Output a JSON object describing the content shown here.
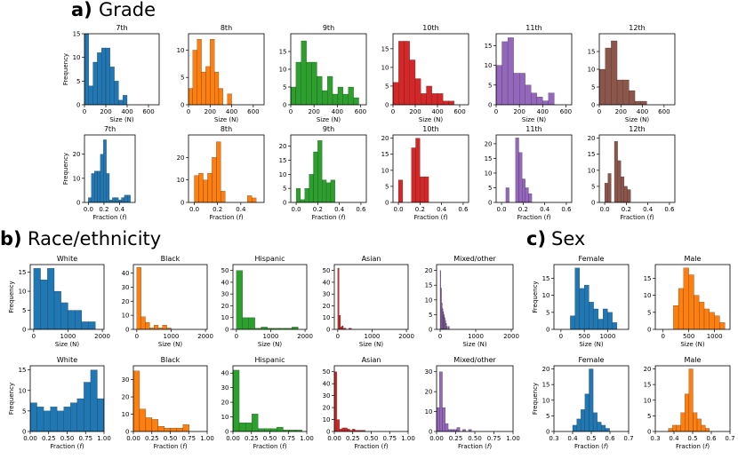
{
  "sections": [
    {
      "letter": "a)",
      "title": "Grade"
    },
    {
      "letter": "b)",
      "title": "Race/ethnicity"
    },
    {
      "letter": "c)",
      "title": "Sex"
    }
  ],
  "labels": {
    "frequency": "Frequency",
    "size": "Size (N)",
    "fraction_prefix": "Fraction (",
    "fraction_var": "f",
    "fraction_suffix": ")"
  },
  "colors": {
    "blue": "#1f77b4",
    "orange": "#ff7f0e",
    "green": "#2ca02c",
    "red": "#d62728",
    "purple": "#9467bd",
    "brown": "#8c564b"
  },
  "chart_data": [
    {
      "type": "bar",
      "title": "7th",
      "color": "blue",
      "xlabel": "size",
      "ylabel": true,
      "xlim": [
        0,
        700
      ],
      "xticks": [
        0,
        200,
        400,
        600
      ],
      "ylim": [
        0,
        15
      ],
      "yticks": [
        0,
        5,
        10,
        15
      ],
      "bin_start": 0,
      "bin_width": 40,
      "values": [
        15,
        4,
        9,
        11,
        12,
        12,
        8,
        5,
        1,
        2
      ]
    },
    {
      "type": "bar",
      "title": "8th",
      "color": "orange",
      "xlabel": "size",
      "ylabel": false,
      "xlim": [
        0,
        700
      ],
      "xticks": [
        0,
        200,
        400,
        600
      ],
      "ylim": [
        0,
        13
      ],
      "yticks": [
        0,
        5,
        10
      ],
      "bin_start": 0,
      "bin_width": 40,
      "values": [
        3,
        10,
        12,
        6,
        7,
        12,
        6,
        3,
        0,
        2
      ]
    },
    {
      "type": "bar",
      "title": "9th",
      "color": "green",
      "xlabel": "size",
      "ylabel": false,
      "xlim": [
        0,
        650
      ],
      "xticks": [
        0,
        200,
        400,
        600
      ],
      "ylim": [
        0,
        20
      ],
      "yticks": [
        0,
        5,
        10,
        15
      ],
      "bin_start": 0,
      "bin_width": 45,
      "values": [
        5,
        12,
        18,
        12,
        12,
        8,
        4,
        8,
        3,
        5,
        3,
        5,
        2
      ]
    },
    {
      "type": "bar",
      "title": "10th",
      "color": "red",
      "xlabel": "size",
      "ylabel": false,
      "xlim": [
        0,
        680
      ],
      "xticks": [
        0,
        200,
        400,
        600
      ],
      "ylim": [
        0,
        19
      ],
      "yticks": [
        0,
        5,
        10,
        15
      ],
      "bin_start": 0,
      "bin_width": 50,
      "values": [
        6,
        17,
        17,
        12,
        7,
        3,
        5,
        3,
        3,
        1,
        1
      ]
    },
    {
      "type": "bar",
      "title": "11th",
      "color": "purple",
      "xlabel": "size",
      "ylabel": false,
      "xlim": [
        0,
        650
      ],
      "xticks": [
        0,
        200,
        400,
        600
      ],
      "ylim": [
        0,
        18
      ],
      "yticks": [
        0,
        5,
        10,
        15
      ],
      "bin_start": 0,
      "bin_width": 50,
      "values": [
        10,
        16,
        17,
        8,
        8,
        5,
        3,
        2,
        1,
        3
      ]
    },
    {
      "type": "bar",
      "title": "12th",
      "color": "brown",
      "xlabel": "size",
      "ylabel": false,
      "xlim": [
        0,
        700
      ],
      "xticks": [
        0,
        200,
        400,
        600
      ],
      "ylim": [
        0,
        20
      ],
      "yticks": [
        0,
        5,
        10,
        15
      ],
      "bin_start": 0,
      "bin_width": 55,
      "values": [
        10,
        16,
        18,
        7,
        7,
        4,
        1,
        1
      ]
    },
    {
      "type": "bar",
      "title": "7th",
      "color": "blue",
      "xlabel": "fraction",
      "ylabel": true,
      "xlim": [
        -0.05,
        0.6
      ],
      "xticks": [
        0.0,
        0.2,
        0.4
      ],
      "ylim": [
        0,
        28
      ],
      "yticks": [
        0,
        10,
        20
      ],
      "bin_start": 0.0,
      "bin_width": 0.0385,
      "values": [
        2,
        12,
        13,
        13,
        20,
        26,
        12,
        1,
        2,
        2,
        1,
        2,
        3,
        3
      ]
    },
    {
      "type": "bar",
      "title": "8th",
      "color": "orange",
      "xlabel": "fraction",
      "ylabel": false,
      "xlim": [
        -0.05,
        0.6
      ],
      "xticks": [
        0.0,
        0.2,
        0.4
      ],
      "ylim": [
        0,
        30
      ],
      "yticks": [
        0,
        10,
        20
      ],
      "bin_start": 0.0,
      "bin_width": 0.038,
      "values": [
        12,
        13,
        10,
        13,
        20,
        27,
        5,
        0,
        0,
        0,
        0,
        0,
        3,
        2
      ]
    },
    {
      "type": "bar",
      "title": "9th",
      "color": "green",
      "xlabel": "fraction",
      "ylabel": false,
      "xlim": [
        -0.05,
        0.65
      ],
      "xticks": [
        0.0,
        0.2,
        0.4,
        0.6
      ],
      "ylim": [
        0,
        24
      ],
      "yticks": [
        0,
        5,
        10,
        15,
        20
      ],
      "bin_start": 0.0,
      "bin_width": 0.04,
      "values": [
        5,
        1,
        5,
        10,
        18,
        22,
        8,
        7,
        8
      ]
    },
    {
      "type": "bar",
      "title": "10th",
      "color": "red",
      "xlabel": "fraction",
      "ylabel": false,
      "xlim": [
        -0.05,
        0.65
      ],
      "xticks": [
        0.0,
        0.2,
        0.4,
        0.6
      ],
      "ylim": [
        0,
        21
      ],
      "yticks": [
        0,
        5,
        10,
        15,
        20
      ],
      "bin_start": 0.0,
      "bin_width": 0.04,
      "values": [
        7,
        0,
        0,
        17,
        20,
        8,
        8
      ]
    },
    {
      "type": "bar",
      "title": "11th",
      "color": "purple",
      "xlabel": "fraction",
      "ylabel": false,
      "xlim": [
        -0.05,
        0.65
      ],
      "xticks": [
        0.0,
        0.2,
        0.4,
        0.6
      ],
      "ylim": [
        0,
        23
      ],
      "yticks": [
        0,
        5,
        10,
        15,
        20
      ],
      "bin_start": 0.04,
      "bin_width": 0.03,
      "values": [
        5,
        0,
        0,
        22,
        17,
        8,
        5,
        3
      ]
    },
    {
      "type": "bar",
      "title": "12th",
      "color": "brown",
      "xlabel": "fraction",
      "ylabel": false,
      "xlim": [
        -0.05,
        0.65
      ],
      "xticks": [
        0.0,
        0.2,
        0.4,
        0.6
      ],
      "ylim": [
        0,
        21
      ],
      "yticks": [
        0,
        5,
        10,
        15,
        20
      ],
      "bin_start": 0.0,
      "bin_width": 0.03,
      "values": [
        6,
        9,
        0,
        19,
        13,
        8,
        5,
        4
      ]
    },
    {
      "type": "bar",
      "title": "White",
      "color": "blue",
      "xlabel": "size",
      "ylabel": true,
      "xlim": [
        -100,
        2050
      ],
      "xticks": [
        0,
        1000,
        2000
      ],
      "ylim": [
        0,
        17
      ],
      "yticks": [
        0,
        5,
        10,
        15
      ],
      "bin_start": 0,
      "bin_width": 200,
      "values": [
        16,
        13,
        16,
        10,
        7,
        5,
        5,
        2,
        2
      ]
    },
    {
      "type": "bar",
      "title": "Black",
      "color": "orange",
      "xlabel": "size",
      "ylabel": false,
      "xlim": [
        -100,
        2050
      ],
      "xticks": [
        0,
        1000,
        2000
      ],
      "ylim": [
        0,
        46
      ],
      "yticks": [
        0,
        10,
        20,
        30,
        40
      ],
      "bin_start": 0,
      "bin_width": 125,
      "values": [
        44,
        9,
        5,
        1,
        3,
        1,
        3,
        1
      ]
    },
    {
      "type": "bar",
      "title": "Hispanic",
      "color": "green",
      "xlabel": "size",
      "ylabel": false,
      "xlim": [
        -100,
        2050
      ],
      "xticks": [
        0,
        1000,
        2000
      ],
      "ylim": [
        0,
        55
      ],
      "yticks": [
        0,
        10,
        20,
        30,
        40,
        50
      ],
      "bin_start": 0,
      "bin_width": 180,
      "values": [
        50,
        10,
        10,
        1,
        2,
        1,
        1,
        1,
        1,
        2
      ]
    },
    {
      "type": "bar",
      "title": "Asian",
      "color": "red",
      "xlabel": "size",
      "ylabel": false,
      "xlim": [
        -100,
        2050
      ],
      "xticks": [
        0,
        1000,
        2000
      ],
      "ylim": [
        0,
        55
      ],
      "yticks": [
        0,
        10,
        20,
        30,
        40,
        50
      ],
      "bin_start": 0,
      "bin_width": 40,
      "values": [
        52,
        12,
        2,
        3,
        1,
        1,
        0,
        0,
        1,
        1
      ]
    },
    {
      "type": "bar",
      "title": "Mixed/other",
      "color": "purple",
      "xlabel": "size",
      "ylabel": false,
      "xlim": [
        -100,
        2050
      ],
      "xticks": [
        0,
        1000,
        2000
      ],
      "ylim": [
        0,
        22
      ],
      "yticks": [
        0,
        5,
        10,
        15,
        20
      ],
      "bin_start": 0,
      "bin_width": 20,
      "values": [
        20,
        14,
        9,
        7,
        6,
        5,
        4,
        3,
        2,
        1,
        0,
        1,
        1
      ]
    },
    {
      "type": "bar",
      "title": "Female",
      "color": "blue",
      "xlabel": "size",
      "ylabel": true,
      "xlim": [
        -150,
        1450
      ],
      "xticks": [
        0,
        500,
        1000
      ],
      "ylim": [
        0,
        19
      ],
      "yticks": [
        0,
        5,
        10,
        15
      ],
      "bin_start": 200,
      "bin_width": 100,
      "values": [
        4,
        18,
        12,
        13,
        8,
        6,
        3,
        6,
        5,
        2
      ]
    },
    {
      "type": "bar",
      "title": "Male",
      "color": "orange",
      "xlabel": "size",
      "ylabel": false,
      "xlim": [
        -150,
        1300
      ],
      "xticks": [
        0,
        500,
        1000
      ],
      "ylim": [
        0,
        19
      ],
      "yticks": [
        0,
        5,
        10,
        15
      ],
      "bin_start": 200,
      "bin_width": 100,
      "values": [
        7,
        12,
        18,
        16,
        10,
        8,
        6,
        5,
        4,
        2
      ]
    },
    {
      "type": "bar",
      "title": "White",
      "color": "blue",
      "xlabel": "fraction",
      "ylabel": true,
      "xlim": [
        0,
        1
      ],
      "xticks": [
        0.0,
        0.25,
        0.5,
        0.75,
        1.0
      ],
      "ylim": [
        0,
        16
      ],
      "yticks": [
        0,
        5,
        10,
        15
      ],
      "bin_start": 0.0,
      "bin_width": 0.0909,
      "values": [
        7,
        6,
        5,
        6,
        5,
        6,
        7,
        8,
        12,
        15,
        8
      ]
    },
    {
      "type": "bar",
      "title": "Black",
      "color": "orange",
      "xlabel": "fraction",
      "ylabel": false,
      "xlim": [
        0,
        1
      ],
      "xticks": [
        0.0,
        0.25,
        0.5,
        0.75,
        1.0
      ],
      "ylim": [
        0,
        38
      ],
      "yticks": [
        0,
        10,
        20,
        30
      ],
      "bin_start": 0.0,
      "bin_width": 0.084,
      "values": [
        35,
        13,
        8,
        7,
        3,
        2,
        2,
        2,
        4
      ]
    },
    {
      "type": "bar",
      "title": "Hispanic",
      "color": "green",
      "xlabel": "fraction",
      "ylabel": false,
      "xlim": [
        0,
        1
      ],
      "xticks": [
        0.0,
        0.25,
        0.5,
        0.75,
        1.0
      ],
      "ylim": [
        0,
        45
      ],
      "yticks": [
        0,
        10,
        20,
        30,
        40
      ],
      "bin_start": 0.0,
      "bin_width": 0.085,
      "values": [
        42,
        6,
        6,
        12,
        2,
        2,
        2,
        3,
        1,
        1,
        1
      ]
    },
    {
      "type": "bar",
      "title": "Asian",
      "color": "red",
      "xlabel": "fraction",
      "ylabel": false,
      "xlim": [
        0,
        1
      ],
      "xticks": [
        0.0,
        0.25,
        0.5,
        0.75,
        1.0
      ],
      "ylim": [
        0,
        55
      ],
      "yticks": [
        0,
        10,
        20,
        30,
        40,
        50
      ],
      "bin_start": 0.0,
      "bin_width": 0.035,
      "values": [
        50,
        10,
        2,
        3,
        3,
        2,
        1,
        2,
        1,
        1,
        1,
        1
      ]
    },
    {
      "type": "bar",
      "title": "Mixed/other",
      "color": "purple",
      "xlabel": "fraction",
      "ylabel": false,
      "xlim": [
        0,
        1
      ],
      "xticks": [
        0.0,
        0.25,
        0.5,
        0.75,
        1.0
      ],
      "ylim": [
        0,
        33
      ],
      "yticks": [
        0,
        10,
        20,
        30
      ],
      "bin_start": 0.0,
      "bin_width": 0.038,
      "values": [
        12,
        30,
        12,
        4,
        1,
        1,
        1,
        2,
        0,
        1,
        0,
        1
      ]
    },
    {
      "type": "bar",
      "title": "Female",
      "color": "blue",
      "xlabel": "fraction",
      "ylabel": true,
      "xlim": [
        0.3,
        0.7
      ],
      "xticks": [
        0.3,
        0.4,
        0.5,
        0.6,
        0.7
      ],
      "ylim": [
        0,
        21
      ],
      "yticks": [
        0,
        5,
        10,
        15,
        20
      ],
      "bin_start": 0.4,
      "bin_width": 0.022,
      "values": [
        2,
        4,
        7,
        12,
        20,
        6,
        3,
        2,
        1
      ]
    },
    {
      "type": "bar",
      "title": "Male",
      "color": "orange",
      "xlabel": "fraction",
      "ylabel": false,
      "xlim": [
        0.3,
        0.7
      ],
      "xticks": [
        0.3,
        0.4,
        0.5,
        0.6,
        0.7
      ],
      "ylim": [
        0,
        21
      ],
      "yticks": [
        0,
        5,
        10,
        15,
        20
      ],
      "bin_start": 0.37,
      "bin_width": 0.022,
      "values": [
        1,
        2,
        2,
        6,
        12,
        20,
        6,
        4,
        2,
        1
      ]
    }
  ]
}
